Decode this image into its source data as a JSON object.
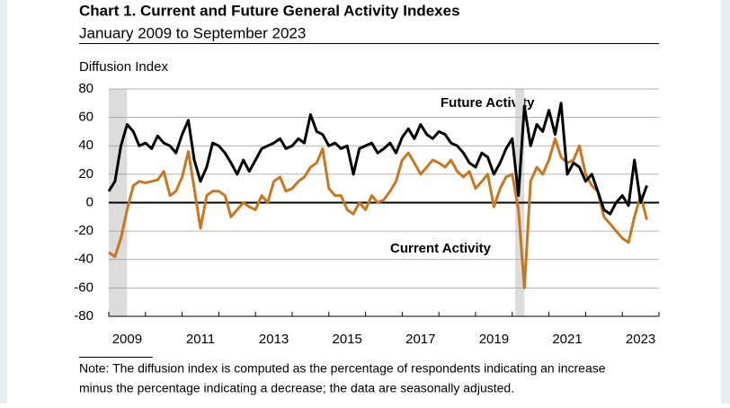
{
  "chart_data": {
    "type": "line",
    "title": "Chart 1. Current and Future General Activity Indexes",
    "subtitle": "January 2009 to September 2023",
    "y_label": "Diffusion Index",
    "note": [
      "Note: The diffusion index is computed as the percentage of respondents indicating an increase",
      "minus the percentage indicating a decrease; the data are seasonally adjusted."
    ],
    "x": [
      2009,
      2009.17,
      2009.33,
      2009.5,
      2009.67,
      2009.83,
      2010,
      2010.17,
      2010.33,
      2010.5,
      2010.67,
      2010.83,
      2011,
      2011.17,
      2011.33,
      2011.5,
      2011.67,
      2011.83,
      2012,
      2012.17,
      2012.33,
      2012.5,
      2012.67,
      2012.83,
      2013,
      2013.17,
      2013.33,
      2013.5,
      2013.67,
      2013.83,
      2014,
      2014.17,
      2014.33,
      2014.5,
      2014.67,
      2014.83,
      2015,
      2015.17,
      2015.33,
      2015.5,
      2015.67,
      2015.83,
      2016,
      2016.17,
      2016.33,
      2016.5,
      2016.67,
      2016.83,
      2017,
      2017.17,
      2017.33,
      2017.5,
      2017.67,
      2017.83,
      2018,
      2018.17,
      2018.33,
      2018.5,
      2018.67,
      2018.83,
      2019,
      2019.17,
      2019.33,
      2019.5,
      2019.67,
      2019.83,
      2020,
      2020.17,
      2020.33,
      2020.5,
      2020.67,
      2020.83,
      2021,
      2021.17,
      2021.33,
      2021.5,
      2021.67,
      2021.83,
      2022,
      2022.17,
      2022.33,
      2022.5,
      2022.67,
      2022.83,
      2023,
      2023.17,
      2023.33,
      2023.5,
      2023.67
    ],
    "series": [
      {
        "name": "Future Activity",
        "color": "#000000",
        "values": [
          8,
          15,
          40,
          55,
          50,
          40,
          42,
          38,
          47,
          42,
          40,
          35,
          48,
          58,
          30,
          15,
          25,
          42,
          40,
          35,
          28,
          20,
          30,
          22,
          30,
          38,
          40,
          42,
          45,
          38,
          40,
          45,
          42,
          62,
          50,
          48,
          40,
          42,
          38,
          40,
          20,
          38,
          40,
          42,
          35,
          38,
          42,
          35,
          46,
          52,
          45,
          55,
          48,
          45,
          50,
          48,
          42,
          40,
          35,
          28,
          25,
          35,
          32,
          20,
          28,
          38,
          45,
          5,
          68,
          40,
          55,
          50,
          65,
          48,
          70,
          20,
          28,
          25,
          15,
          20,
          8,
          -5,
          -8,
          0,
          5,
          -2,
          30,
          0,
          12
        ]
      },
      {
        "name": "Current Activity",
        "color": "#c8771e",
        "values": [
          -35,
          -38,
          -25,
          -5,
          12,
          15,
          14,
          15,
          16,
          22,
          5,
          8,
          18,
          36,
          10,
          -18,
          5,
          8,
          8,
          5,
          -10,
          -5,
          0,
          -3,
          -5,
          5,
          0,
          15,
          18,
          8,
          10,
          15,
          18,
          25,
          28,
          38,
          10,
          5,
          5,
          -5,
          -8,
          0,
          -5,
          5,
          0,
          2,
          8,
          15,
          30,
          35,
          28,
          20,
          25,
          30,
          28,
          25,
          30,
          22,
          18,
          22,
          10,
          15,
          20,
          -3,
          10,
          18,
          20,
          -5,
          -60,
          15,
          25,
          20,
          30,
          45,
          32,
          28,
          30,
          40,
          20,
          12,
          8,
          -10,
          -15,
          -20,
          -25,
          -28,
          -10,
          5,
          -12
        ]
      }
    ],
    "xlim": [
      2009,
      2024
    ],
    "xticks": [
      {
        "value": 2009.5,
        "label": "2009"
      },
      {
        "value": 2011.5,
        "label": "2011"
      },
      {
        "value": 2013.5,
        "label": "2013"
      },
      {
        "value": 2015.5,
        "label": "2015"
      },
      {
        "value": 2017.5,
        "label": "2017"
      },
      {
        "value": 2019.5,
        "label": "2019"
      },
      {
        "value": 2021.5,
        "label": "2021"
      },
      {
        "value": 2023.5,
        "label": "2023"
      }
    ],
    "ylim": [
      -80,
      80
    ],
    "yticks": [
      -80,
      -60,
      -40,
      -20,
      0,
      20,
      40,
      60,
      80
    ],
    "grid": true,
    "shading": [
      [
        2009,
        2009.5
      ],
      [
        2020.08,
        2020.33
      ]
    ]
  }
}
